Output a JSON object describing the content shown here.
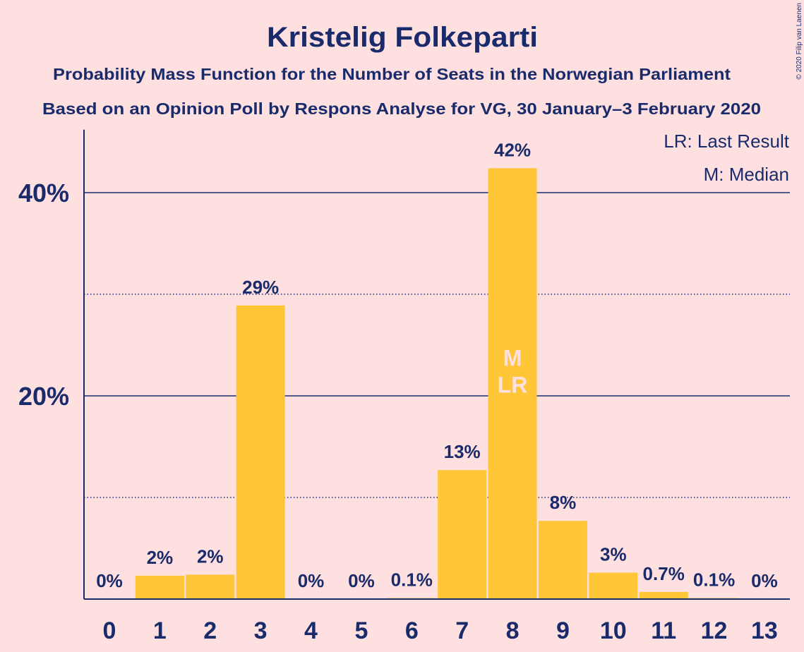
{
  "colors": {
    "background": "#ffe0e0",
    "text": "#1a2b6b",
    "bar": "#ffc638",
    "marker_text": "#ffe0e0"
  },
  "chart_data": {
    "type": "bar",
    "title": "Kristelig Folkeparti",
    "subtitle": "Probability Mass Function for the Number of Seats in the Norwegian Parliament",
    "source": "Based on an Opinion Poll by Respons Analyse for VG, 30 January–3 February 2020",
    "credit": "© 2020 Filip van Laenen",
    "categories": [
      "0",
      "1",
      "2",
      "3",
      "4",
      "5",
      "6",
      "7",
      "8",
      "9",
      "10",
      "11",
      "12",
      "13"
    ],
    "values": [
      0,
      2.3,
      2.4,
      28.9,
      0,
      0,
      0.1,
      12.7,
      42.4,
      7.7,
      2.6,
      0.7,
      0.1,
      0
    ],
    "value_labels": [
      "0%",
      "2%",
      "2%",
      "29%",
      "0%",
      "0%",
      "0.1%",
      "13%",
      "42%",
      "8%",
      "3%",
      "0.7%",
      "0.1%",
      "0%"
    ],
    "ylim": [
      0,
      46.2
    ],
    "yticks": [
      {
        "value": 20,
        "label": "20%"
      },
      {
        "value": 40,
        "label": "40%"
      }
    ],
    "major_gridlines": [
      20,
      40
    ],
    "minor_gridlines": [
      10,
      30
    ],
    "grid": true,
    "legend_position": "top-right",
    "legend": [
      "LR: Last Result",
      "M: Median"
    ],
    "annotations": [
      {
        "category": "8",
        "text": "M"
      },
      {
        "category": "8",
        "text": "LR"
      }
    ]
  }
}
